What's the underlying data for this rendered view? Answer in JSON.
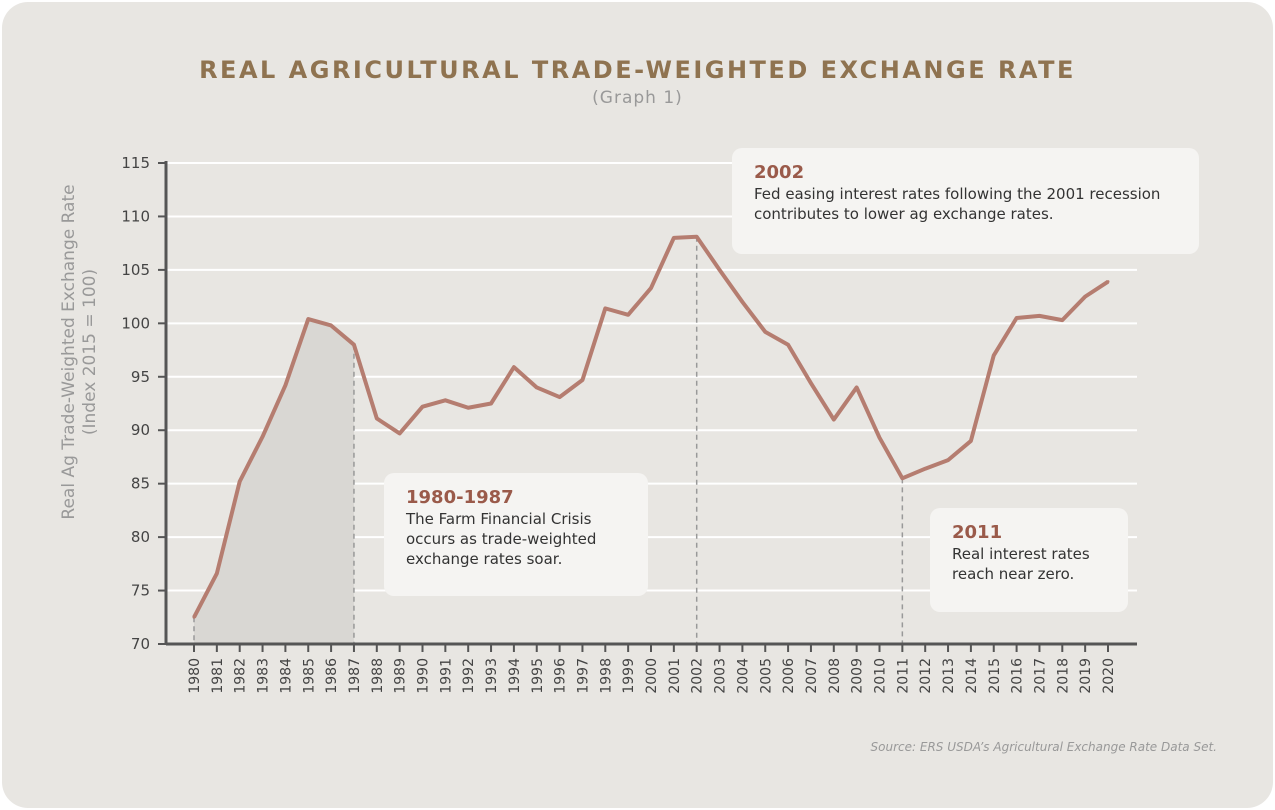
{
  "chart_data": {
    "type": "area-line",
    "title": "REAL AGRICULTURAL TRADE-WEIGHTED EXCHANGE RATE",
    "subtitle": "(Graph 1)",
    "ylabel": "Real Ag Trade-Weighted Exchange Rate",
    "ylabel2": "(Index 2015 = 100)",
    "xlabel": "",
    "ylim": [
      70,
      115
    ],
    "yticks": [
      70,
      75,
      80,
      85,
      90,
      95,
      100,
      105,
      110,
      115
    ],
    "grid": "horizontal",
    "x": [
      1980,
      1981,
      1982,
      1983,
      1984,
      1985,
      1986,
      1987,
      1988,
      1989,
      1990,
      1991,
      1992,
      1993,
      1994,
      1995,
      1996,
      1997,
      1998,
      1999,
      2000,
      2001,
      2002,
      2003,
      2004,
      2005,
      2006,
      2007,
      2008,
      2009,
      2010,
      2011,
      2012,
      2013,
      2014,
      2015,
      2016,
      2017,
      2018,
      2019,
      2020
    ],
    "values": [
      72.5,
      76.6,
      85.2,
      89.4,
      94.2,
      100.4,
      99.8,
      98.0,
      91.1,
      89.7,
      92.2,
      92.8,
      92.1,
      92.5,
      95.9,
      94.0,
      93.1,
      94.7,
      101.4,
      100.8,
      103.3,
      108.0,
      108.1,
      105.0,
      102.0,
      99.2,
      98.0,
      94.4,
      91.0,
      94.0,
      89.3,
      85.5,
      86.4,
      87.2,
      89.0,
      97.0,
      100.5,
      100.7,
      100.3,
      102.5,
      103.9
    ],
    "shaded_range": [
      1980,
      1987
    ],
    "markers": [
      1987,
      2002,
      2011
    ],
    "colors": {
      "line": "#b57d70",
      "shade": "#d9d7d3",
      "title": "#8f7350",
      "annotation_year": "#9a5a4a"
    },
    "annotations": [
      {
        "year": "1980-1987",
        "text": "The Farm Financial Crisis occurs as trade-weighted exchange rates soar."
      },
      {
        "year": "2002",
        "text": "Fed easing interest rates following the 2001 recession contributes to lower ag exchange rates."
      },
      {
        "year": "2011",
        "text": "Real interest rates reach near zero."
      }
    ],
    "source": "Source: ERS USDA’s Agricultural Exchange Rate Data Set."
  }
}
